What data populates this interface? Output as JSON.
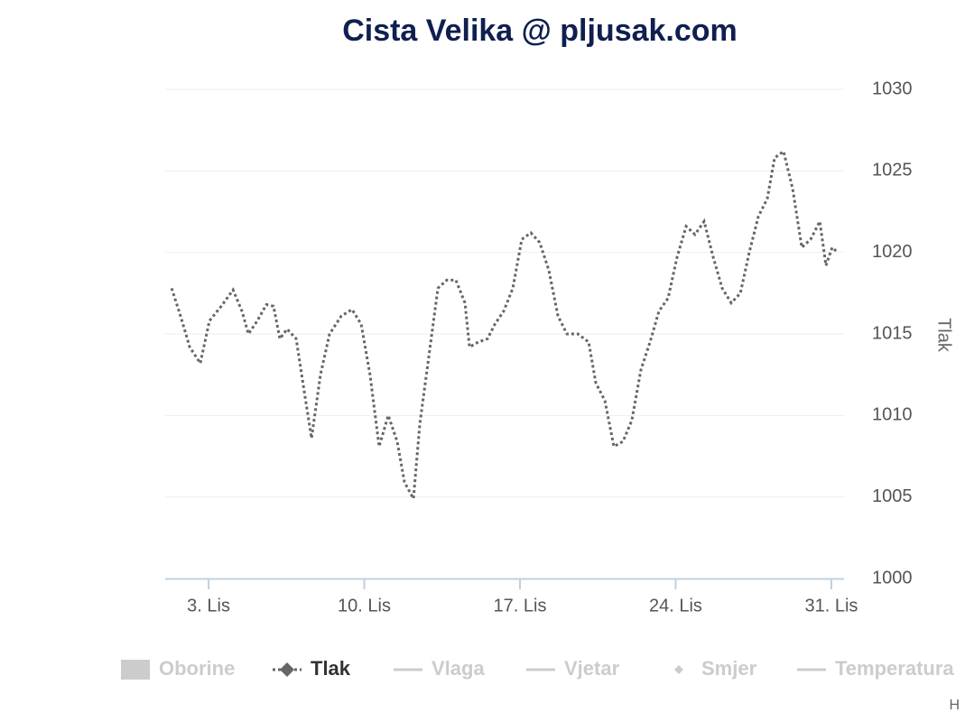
{
  "chart_data": {
    "type": "line",
    "title": "Cista Velika @ pljusak.com",
    "y_label": "Tlak",
    "x": [
      1.34,
      1.74,
      2.15,
      2.63,
      3.04,
      3.57,
      4.1,
      4.5,
      4.79,
      5.19,
      5.6,
      5.92,
      6.21,
      6.53,
      6.94,
      7.22,
      7.63,
      8.03,
      8.44,
      8.97,
      9.45,
      9.86,
      10.26,
      10.67,
      11.08,
      11.48,
      11.81,
      12.21,
      12.5,
      12.9,
      13.31,
      13.71,
      14.12,
      14.53,
      14.73,
      15.13,
      15.54,
      15.87,
      16.27,
      16.68,
      17.08,
      17.49,
      17.89,
      18.3,
      18.71,
      19.11,
      19.6,
      20.09,
      20.41,
      20.82,
      21.22,
      21.63,
      22.03,
      22.44,
      22.85,
      23.25,
      23.66,
      24.06,
      24.47,
      24.87,
      25.28,
      25.69,
      26.09,
      26.5,
      26.91,
      27.31,
      27.72,
      28.12,
      28.45,
      28.85,
      29.26,
      29.67,
      30.07,
      30.48,
      30.76,
      31.04,
      31.29
    ],
    "series": [
      {
        "name": "Tlak",
        "color": "#666666",
        "values": [
          1017.8,
          1016.1,
          1014.2,
          1013.2,
          1015.8,
          1016.7,
          1017.7,
          1016.4,
          1015.0,
          1015.8,
          1016.8,
          1016.7,
          1014.7,
          1015.3,
          1014.7,
          1012.2,
          1008.6,
          1012.5,
          1015.0,
          1016.1,
          1016.5,
          1015.6,
          1012.5,
          1008.1,
          1010.0,
          1008.4,
          1005.9,
          1004.9,
          1009.5,
          1013.6,
          1017.8,
          1018.3,
          1018.3,
          1016.9,
          1014.2,
          1014.5,
          1014.7,
          1015.6,
          1016.4,
          1017.8,
          1020.8,
          1021.2,
          1020.6,
          1018.9,
          1016.1,
          1015.0,
          1015.0,
          1014.5,
          1012.0,
          1010.9,
          1008.1,
          1008.4,
          1009.7,
          1012.8,
          1014.5,
          1016.4,
          1017.2,
          1019.7,
          1021.6,
          1021.1,
          1021.9,
          1019.7,
          1017.8,
          1016.9,
          1017.5,
          1020.0,
          1022.2,
          1023.3,
          1025.8,
          1026.2,
          1023.9,
          1020.3,
          1020.8,
          1021.9,
          1019.2,
          1020.3,
          1020.0
        ]
      }
    ],
    "xlim": [
      1.05,
      31.57
    ],
    "xticks": [
      {
        "value": 3,
        "label": "3. Lis"
      },
      {
        "value": 10,
        "label": "10. Lis"
      },
      {
        "value": 17,
        "label": "17. Lis"
      },
      {
        "value": 24,
        "label": "24. Lis"
      },
      {
        "value": 31,
        "label": "31. Lis"
      }
    ],
    "ylim": [
      1000,
      1030
    ],
    "yticks": [
      1000,
      1005,
      1010,
      1015,
      1020,
      1025,
      1030
    ],
    "grid": true,
    "legend": [
      {
        "name": "Oborine",
        "symbol": "rect",
        "visible": false
      },
      {
        "series": 0,
        "symbol": "line-diamond",
        "visible": true
      },
      {
        "name": "Vlaga",
        "symbol": "line",
        "visible": false
      },
      {
        "name": "Vjetar",
        "symbol": "line",
        "visible": false
      },
      {
        "name": "Smjer",
        "symbol": "diamond",
        "visible": false
      },
      {
        "name": "Temperatura",
        "symbol": "line",
        "visible": false
      }
    ],
    "credits": "H"
  }
}
